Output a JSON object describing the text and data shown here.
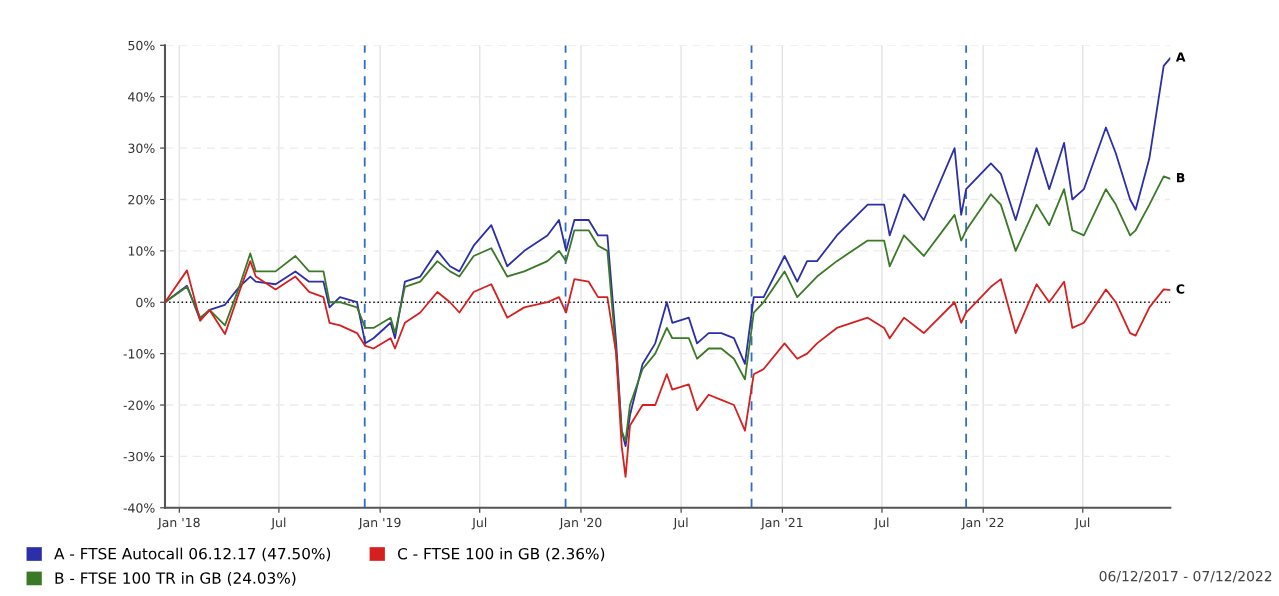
{
  "chart_data": {
    "type": "line",
    "x": [
      "2017-12-06",
      "2018-01-15",
      "2018-02-08",
      "2018-02-25",
      "2018-03-25",
      "2018-04-20",
      "2018-05-10",
      "2018-05-20",
      "2018-06-25",
      "2018-07-31",
      "2018-08-25",
      "2018-09-20",
      "2018-10-01",
      "2018-10-20",
      "2018-11-20",
      "2018-12-05",
      "2018-12-20",
      "2019-01-20",
      "2019-01-28",
      "2019-02-15",
      "2019-03-15",
      "2019-04-15",
      "2019-05-08",
      "2019-05-25",
      "2019-06-20",
      "2019-07-22",
      "2019-08-20",
      "2019-09-20",
      "2019-11-01",
      "2019-11-22",
      "2019-12-05",
      "2019-12-20",
      "2020-01-15",
      "2020-02-01",
      "2020-02-18",
      "2020-03-05",
      "2020-03-15",
      "2020-03-22",
      "2020-03-30",
      "2020-04-22",
      "2020-05-15",
      "2020-06-05",
      "2020-06-15",
      "2020-07-15",
      "2020-07-30",
      "2020-08-20",
      "2020-09-12",
      "2020-10-05",
      "2020-10-25",
      "2020-11-10",
      "2020-11-28",
      "2021-01-05",
      "2021-01-28",
      "2021-02-15",
      "2021-03-05",
      "2021-04-10",
      "2021-06-05",
      "2021-07-05",
      "2021-07-15",
      "2021-08-10",
      "2021-09-15",
      "2021-11-10",
      "2021-11-22",
      "2021-12-01",
      "2022-01-15",
      "2022-02-02",
      "2022-03-01",
      "2022-04-08",
      "2022-05-01",
      "2022-05-28",
      "2022-06-12",
      "2022-07-03",
      "2022-08-12",
      "2022-08-30",
      "2022-09-25",
      "2022-10-05",
      "2022-10-30",
      "2022-11-25",
      "2022-12-07"
    ],
    "series": [
      {
        "name": "A - FTSE Autocall 06.12.17 (47.50%)",
        "color": "#2b2fa8",
        "values": [
          0,
          3.2,
          -3.5,
          -1.5,
          -0.5,
          3,
          5,
          4,
          3.5,
          6,
          4,
          4,
          -1,
          1,
          0,
          -8,
          -7,
          -4,
          -7,
          4,
          5,
          10,
          7,
          6,
          11,
          15,
          7,
          10,
          13,
          16,
          10,
          16,
          16,
          13,
          13,
          -8,
          -25,
          -28,
          -22,
          -12,
          -8,
          0,
          -4,
          -3,
          -8,
          -6,
          -6,
          -7,
          -12,
          1,
          1,
          9,
          4,
          8,
          8,
          13,
          19,
          19,
          13,
          21,
          16,
          30,
          17,
          22,
          27,
          25,
          16,
          30,
          22,
          31,
          20,
          22,
          34,
          29,
          20,
          18,
          28,
          46,
          47.5
        ]
      },
      {
        "name": "B - FTSE 100 TR in GB (24.03%)",
        "color": "#3a7a26",
        "values": [
          0,
          3,
          -3,
          -1.5,
          -4.5,
          3,
          9.5,
          6,
          6,
          9,
          6,
          6,
          0,
          0,
          -1,
          -5,
          -5,
          -3,
          -6,
          3,
          4,
          8,
          6,
          5,
          9,
          10.5,
          5,
          6,
          8,
          10,
          8,
          14,
          14,
          11,
          10,
          -10,
          -25,
          -27,
          -20,
          -13,
          -10,
          -5,
          -7,
          -7,
          -11,
          -9,
          -9,
          -11,
          -15,
          -2,
          0,
          6,
          1,
          3,
          5,
          8,
          12,
          12,
          7,
          13,
          9,
          17,
          12,
          14,
          21,
          19,
          10,
          19,
          15,
          22,
          14,
          13,
          22,
          19,
          13,
          14,
          19,
          24.5,
          24.03
        ]
      },
      {
        "name": "C - FTSE 100 in GB (2.36%)",
        "color": "#d62020",
        "values": [
          0,
          6.2,
          -3.6,
          -1.5,
          -6.2,
          2,
          8,
          5,
          2.5,
          5,
          2,
          1,
          -4,
          -4.5,
          -6,
          -8.5,
          -9,
          -7,
          -9,
          -4,
          -2,
          2,
          0,
          -2,
          2,
          3.5,
          -3,
          -1,
          0,
          1,
          -2,
          4.5,
          4,
          1,
          1,
          -10,
          -28,
          -34,
          -24,
          -20,
          -20,
          -14,
          -17,
          -16,
          -21,
          -18,
          -19,
          -20,
          -25,
          -14,
          -13,
          -8,
          -11,
          -10,
          -8,
          -5,
          -3,
          -5,
          -7,
          -3,
          -6,
          0,
          -4,
          -2,
          3,
          4.5,
          -6,
          3.5,
          0,
          4,
          -5,
          -4,
          2.5,
          0,
          -6,
          -6.5,
          -1,
          2.5,
          2.36
        ]
      }
    ],
    "xlim": [
      "2017-12-06",
      "2022-12-07"
    ],
    "xticks": [
      {
        "value": "2018-01-01",
        "label": "Jan '18"
      },
      {
        "value": "2018-07-01",
        "label": "Jul"
      },
      {
        "value": "2019-01-01",
        "label": "Jan '19"
      },
      {
        "value": "2019-07-01",
        "label": "Jul"
      },
      {
        "value": "2020-01-01",
        "label": "Jan '20"
      },
      {
        "value": "2020-07-01",
        "label": "Jul"
      },
      {
        "value": "2021-01-01",
        "label": "Jan '21"
      },
      {
        "value": "2021-07-01",
        "label": "Jul"
      },
      {
        "value": "2022-01-01",
        "label": "Jan '22"
      },
      {
        "value": "2022-07-01",
        "label": "Jul"
      }
    ],
    "ylim": [
      -40,
      50
    ],
    "yticks": [
      {
        "value": -40,
        "label": "-40%"
      },
      {
        "value": -30,
        "label": "-30%"
      },
      {
        "value": -20,
        "label": "-20%"
      },
      {
        "value": -10,
        "label": "-10%"
      },
      {
        "value": 0,
        "label": "0%"
      },
      {
        "value": 10,
        "label": "10%"
      },
      {
        "value": 20,
        "label": "20%"
      },
      {
        "value": 30,
        "label": "30%"
      },
      {
        "value": 40,
        "label": "40%"
      },
      {
        "value": 50,
        "label": "50%"
      }
    ],
    "ref_lines": [
      {
        "axis": "y",
        "value": 0,
        "color": "#000000",
        "line_style": "dotted"
      },
      {
        "axis": "x",
        "value": "2018-12-04",
        "color": "#2e6fc4",
        "line_style": "dashed"
      },
      {
        "axis": "x",
        "value": "2019-12-04",
        "color": "#2e6fc4",
        "line_style": "dashed"
      },
      {
        "axis": "x",
        "value": "2020-11-06",
        "color": "#2e6fc4",
        "line_style": "dashed"
      },
      {
        "axis": "x",
        "value": "2021-12-01",
        "color": "#2e6fc4",
        "line_style": "dashed"
      }
    ],
    "annotations": [
      {
        "text": "A",
        "x": "2022-12-07",
        "y": 47.5
      },
      {
        "text": "B",
        "x": "2022-12-07",
        "y": 24.03
      },
      {
        "text": "C",
        "x": "2022-12-07",
        "y": 2.36
      },
      "06/12/2017 - 07/12/2022"
    ],
    "grid": true,
    "legend": "bottom left",
    "line_style": "solid"
  }
}
